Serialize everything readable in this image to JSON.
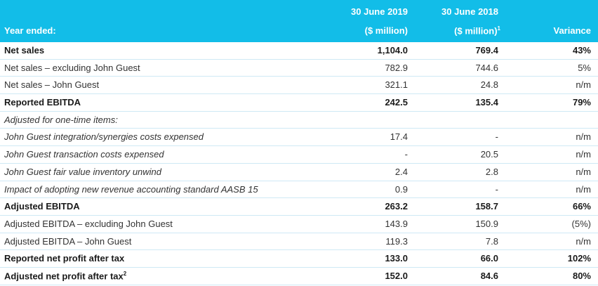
{
  "header": {
    "col0": "Year ended:",
    "col1_line1": "30 June 2019",
    "col1_line2": "($ million)",
    "col2_line1": "30 June 2018",
    "col2_line2": "($ million)",
    "col2_sup": "1",
    "col3": "Variance",
    "bg_color": "#12bde8"
  },
  "rows": [
    {
      "label": "Net sales",
      "v1": "1,104.0",
      "v2": "769.4",
      "v3": "43%",
      "sup": ""
    },
    {
      "label": "Net sales – excluding John Guest",
      "v1": "782.9",
      "v2": "744.6",
      "v3": "5%",
      "sup": ""
    },
    {
      "label": "Net sales – John Guest",
      "v1": "321.1",
      "v2": "24.8",
      "v3": "n/m",
      "sup": ""
    },
    {
      "label": "Reported EBITDA",
      "v1": "242.5",
      "v2": "135.4",
      "v3": "79%",
      "sup": ""
    },
    {
      "label": "Adjusted for one-time items:",
      "v1": "",
      "v2": "",
      "v3": "",
      "sup": ""
    },
    {
      "label": "John Guest integration/synergies costs expensed",
      "v1": "17.4",
      "v2": "-",
      "v3": "n/m",
      "sup": ""
    },
    {
      "label": "John Guest transaction costs expensed",
      "v1": "-",
      "v2": "20.5",
      "v3": "n/m",
      "sup": ""
    },
    {
      "label": "John Guest fair value inventory unwind",
      "v1": "2.4",
      "v2": "2.8",
      "v3": "n/m",
      "sup": ""
    },
    {
      "label": "Impact of adopting new revenue accounting standard AASB 15",
      "v1": "0.9",
      "v2": "-",
      "v3": "n/m",
      "sup": ""
    },
    {
      "label": "Adjusted EBITDA",
      "v1": "263.2",
      "v2": "158.7",
      "v3": "66%",
      "sup": ""
    },
    {
      "label": "Adjusted EBITDA – excluding John Guest",
      "v1": "143.9",
      "v2": "150.9",
      "v3": "(5%)",
      "sup": ""
    },
    {
      "label": "Adjusted EBITDA – John Guest",
      "v1": "119.3",
      "v2": "7.8",
      "v3": "n/m",
      "sup": ""
    },
    {
      "label": "Reported net profit after tax",
      "v1": "133.0",
      "v2": "66.0",
      "v3": "102%",
      "sup": ""
    },
    {
      "label": "Adjusted net profit after tax",
      "v1": "152.0",
      "v2": "84.6",
      "v3": "80%",
      "sup": "2"
    }
  ]
}
